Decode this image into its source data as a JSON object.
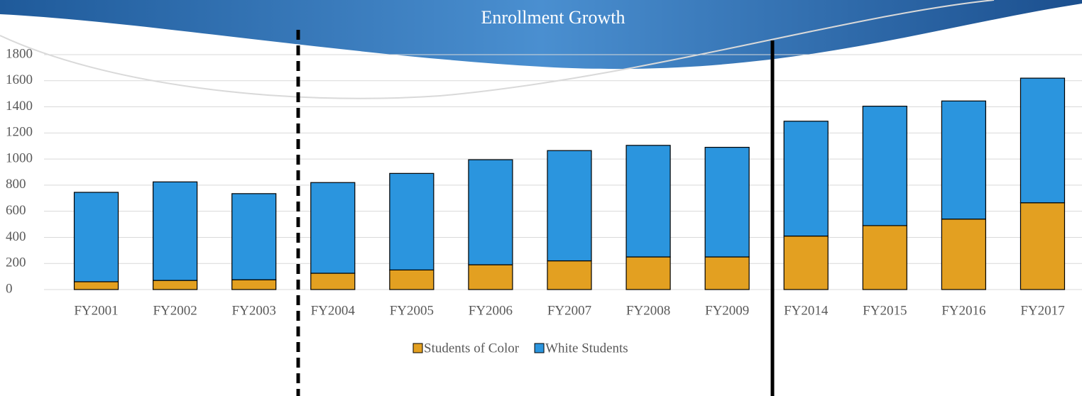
{
  "chart_data": {
    "type": "stacked_bar",
    "title": "Enrollment Growth",
    "categories": [
      "FY2001",
      "FY2002",
      "FY2003",
      "FY2004",
      "FY2005",
      "FY2006",
      "FY2007",
      "FY2008",
      "FY2009",
      "FY2014",
      "FY2015",
      "FY2016",
      "FY2017"
    ],
    "series": [
      {
        "name": "Students of Color",
        "color": "#e3a021",
        "values": [
          60,
          70,
          75,
          125,
          150,
          190,
          220,
          250,
          250,
          410,
          490,
          540,
          665
        ]
      },
      {
        "name": "White Students",
        "color": "#2b95de",
        "values": [
          685,
          755,
          660,
          695,
          740,
          805,
          845,
          855,
          840,
          880,
          915,
          905,
          955
        ]
      }
    ],
    "ylim": [
      0,
      1800
    ],
    "yticks": [
      0,
      200,
      400,
      600,
      800,
      1000,
      1200,
      1400,
      1600,
      1800
    ],
    "grid": true,
    "legend": "bottom"
  }
}
